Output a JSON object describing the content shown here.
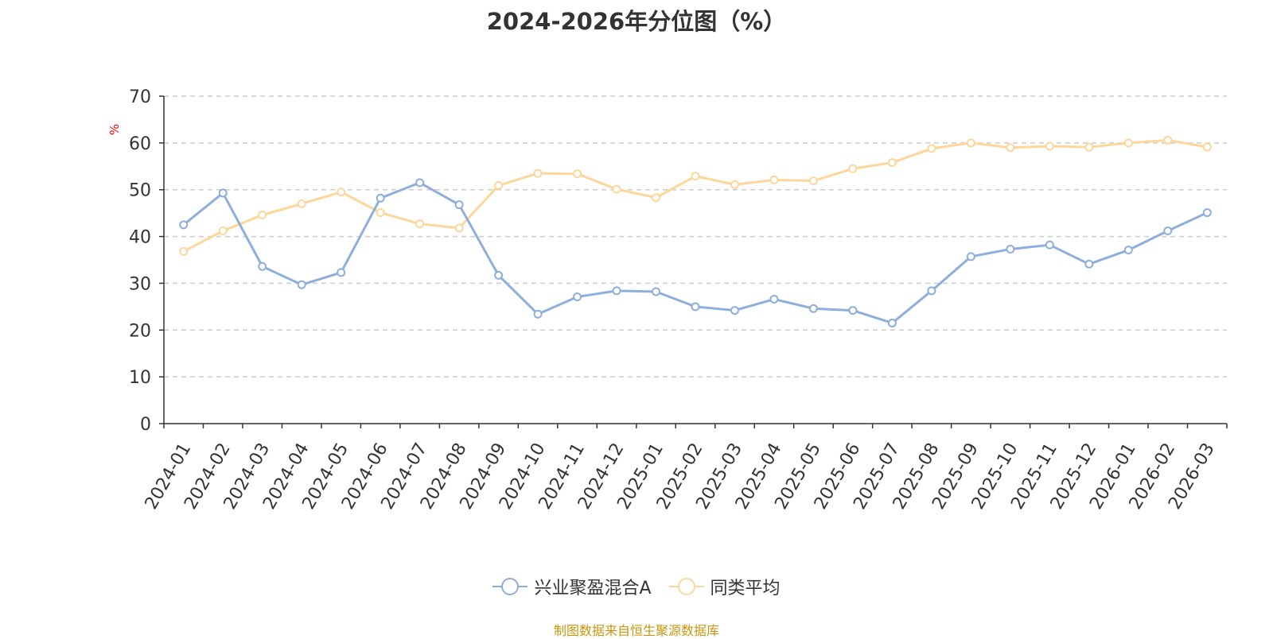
{
  "title": "2024-2026年分位图（%）",
  "footer": "制图数据来自恒生聚源数据库",
  "chart_data": {
    "type": "line",
    "title": "2024-2026年分位图（%）",
    "ylabel": "%",
    "ylim": [
      0,
      70
    ],
    "yticks": [
      0,
      10,
      20,
      30,
      40,
      50,
      60,
      70
    ],
    "grid": true,
    "legend_position": "bottom-center",
    "categories": [
      "2024-01",
      "2024-02",
      "2024-03",
      "2024-04",
      "2024-05",
      "2024-06",
      "2024-07",
      "2024-08",
      "2024-09",
      "2024-10",
      "2024-11",
      "2024-12",
      "2025-01",
      "2025-02",
      "2025-03",
      "2025-04",
      "2025-05",
      "2025-06",
      "2025-07",
      "2025-08",
      "2025-09",
      "2025-10",
      "2025-11",
      "2025-12",
      "2026-01",
      "2026-02",
      "2026-03"
    ],
    "series": [
      {
        "name": "兴业聚盈混合A",
        "color": "#8eaedb",
        "values": [
          42.5,
          49.3,
          33.6,
          29.7,
          32.3,
          48.2,
          51.5,
          46.8,
          31.7,
          23.4,
          27.1,
          28.4,
          28.2,
          25.0,
          24.2,
          26.6,
          24.6,
          24.2,
          21.5,
          28.4,
          35.7,
          37.3,
          38.2,
          34.1,
          37.1,
          41.2,
          45.1
        ]
      },
      {
        "name": "同类平均",
        "color": "#fdd79a",
        "values": [
          36.8,
          41.2,
          44.6,
          47.0,
          49.5,
          45.1,
          42.7,
          41.8,
          50.9,
          53.5,
          53.4,
          50.1,
          48.3,
          52.9,
          51.1,
          52.1,
          51.9,
          54.5,
          55.8,
          58.8,
          60.0,
          59.0,
          59.3,
          59.1,
          60.0,
          60.6,
          59.1
        ]
      }
    ]
  }
}
